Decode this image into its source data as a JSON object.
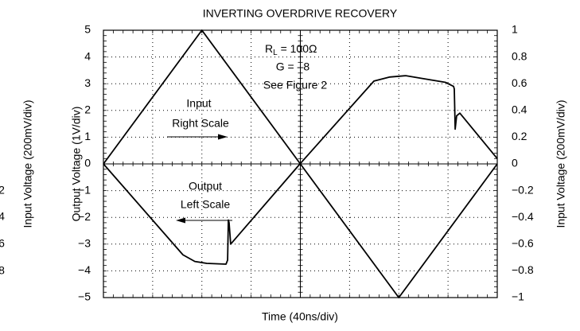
{
  "chart_data": {
    "type": "line",
    "title": "INVERTING OVERDRIVE RECOVERY",
    "x_label": "Time (40ns/div)",
    "y_label": "Output Voltage (1V/div)",
    "y2_label": "Input Voltage (200mV/div)",
    "xlim": [
      0,
      320
    ],
    "xticks": [
      0,
      40,
      80,
      120,
      160,
      200,
      240,
      280,
      320
    ],
    "ylim": [
      -5,
      5
    ],
    "yticks": [
      {
        "value": -5,
        "label": "−5"
      },
      {
        "value": -4,
        "label": "−4"
      },
      {
        "value": -3,
        "label": "−3"
      },
      {
        "value": -2,
        "label": "−2"
      },
      {
        "value": -1,
        "label": "−1"
      },
      0,
      1,
      2,
      3,
      4,
      5
    ],
    "y2lim": [
      -1,
      1
    ],
    "y2ticks": [
      {
        "value": -1,
        "label": "−1"
      },
      {
        "value": -0.8,
        "label": "−0.8"
      },
      {
        "value": -0.6,
        "label": "−0.6"
      },
      {
        "value": -0.4,
        "label": "−0.4"
      },
      {
        "value": -0.2,
        "label": "−0.2"
      },
      0,
      0.2,
      0.4,
      0.6,
      0.8,
      1
    ],
    "grid": true,
    "series": [
      {
        "name": "Input",
        "color": "#000000",
        "axis": "y2",
        "x": [
          0,
          80,
          160,
          240,
          320
        ],
        "values": [
          0,
          1,
          0,
          -1,
          0
        ]
      },
      {
        "name": "Output",
        "color": "#000000",
        "axis": "y",
        "x": [
          0,
          64.6,
          74.3,
          84,
          99.6,
          100.9,
          101.5,
          102.1,
          103.4,
          159.7,
          219.8,
          232.7,
          245.7,
          258.6,
          278,
          284.5,
          285.1,
          285.8,
          287,
          289.6,
          320
        ],
        "values": [
          0,
          -3.4,
          -3.65,
          -3.72,
          -3.75,
          -3.6,
          -2.1,
          -2.2,
          -3.0,
          0,
          3.1,
          3.25,
          3.3,
          3.2,
          3.05,
          2.9,
          2.8,
          1.3,
          1.8,
          1.9,
          0.2
        ]
      }
    ],
    "annotations": {
      "rl": {
        "main": "R",
        "sub": "L",
        "rest": " = 100Ω"
      },
      "gain": "G = –8",
      "figure": "See Figure 2",
      "input_line1": "Input",
      "input_line2": "Right Scale",
      "output_line1": "Output",
      "output_line2": "Left Scale"
    },
    "cropped_left": {
      "label": "Input Voltage (200mV/div)",
      "ticks": [
        "2",
        "4",
        "6",
        "8"
      ]
    }
  }
}
